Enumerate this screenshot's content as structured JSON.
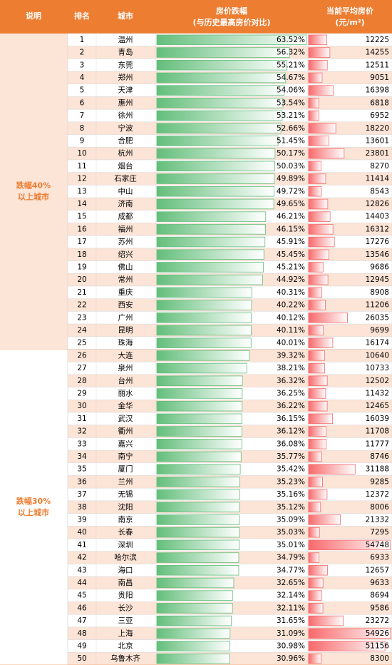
{
  "table": {
    "header": {
      "col0": "说明",
      "col1": "排名",
      "col2": "城市",
      "col3": [
        "房价跌幅",
        "(与历史最高房价对比)"
      ],
      "col4": [
        "当前平均房价",
        "(元/m²)"
      ]
    },
    "groups": [
      {
        "label": [
          "跌幅40%",
          "以上城市"
        ],
        "rows": [
          [
            1,
            "温州",
            {
              "value": 63.52,
              "label": "63.52%"
            },
            12225
          ],
          [
            2,
            "青岛",
            {
              "value": 56.32,
              "label": "56.32%"
            },
            14255
          ],
          [
            3,
            "东莞",
            {
              "value": 55.21,
              "label": "55.21%"
            },
            12511
          ],
          [
            4,
            "郑州",
            {
              "value": 54.67,
              "label": "54.67%"
            },
            9051
          ],
          [
            5,
            "天津",
            {
              "value": 54.06,
              "label": "54.06%"
            },
            16398
          ],
          [
            6,
            "惠州",
            {
              "value": 53.54,
              "label": "53.54%"
            },
            6818
          ],
          [
            7,
            "徐州",
            {
              "value": 53.21,
              "label": "53.21%"
            },
            6952
          ],
          [
            8,
            "宁波",
            {
              "value": 52.66,
              "label": "52.66%"
            },
            18220
          ],
          [
            9,
            "合肥",
            {
              "value": 51.45,
              "label": "51.45%"
            },
            13601
          ],
          [
            10,
            "杭州",
            {
              "value": 50.17,
              "label": "50.17%"
            },
            23801
          ],
          [
            11,
            "烟台",
            {
              "value": 50.03,
              "label": "50.03%"
            },
            8270
          ],
          [
            12,
            "石家庄",
            {
              "value": 49.89,
              "label": "49.89%"
            },
            11414
          ],
          [
            13,
            "中山",
            {
              "value": 49.72,
              "label": "49.72%"
            },
            8543
          ],
          [
            14,
            "济南",
            {
              "value": 49.65,
              "label": "49.65%"
            },
            12826
          ],
          [
            15,
            "成都",
            {
              "value": 46.21,
              "label": "46.21%"
            },
            14403
          ],
          [
            16,
            "福州",
            {
              "value": 46.15,
              "label": "46.15%"
            },
            16312
          ],
          [
            17,
            "苏州",
            {
              "value": 45.91,
              "label": "45.91%"
            },
            17276
          ],
          [
            18,
            "绍兴",
            {
              "value": 45.45,
              "label": "45.45%"
            },
            13546
          ],
          [
            19,
            "佛山",
            {
              "value": 45.21,
              "label": "45.21%"
            },
            9686
          ],
          [
            20,
            "常州",
            {
              "value": 44.92,
              "label": "44.92%"
            },
            12945
          ],
          [
            21,
            "重庆",
            {
              "value": 40.31,
              "label": "40.31%"
            },
            8908
          ],
          [
            22,
            "西安",
            {
              "value": 40.22,
              "label": "40.22%"
            },
            11206
          ],
          [
            23,
            "广州",
            {
              "value": 40.12,
              "label": "40.12%"
            },
            26035
          ],
          [
            24,
            "昆明",
            {
              "value": 40.11,
              "label": "40.11%"
            },
            9699
          ],
          [
            25,
            "珠海",
            {
              "value": 40.01,
              "label": "40.01%"
            },
            16174
          ]
        ]
      },
      {
        "label": [
          "跌幅30%",
          "以上城市"
        ],
        "rows": [
          [
            26,
            "大连",
            {
              "value": 39.32,
              "label": "39.32%"
            },
            10640
          ],
          [
            27,
            "泉州",
            {
              "value": 38.21,
              "label": "38.21%"
            },
            10733
          ],
          [
            28,
            "台州",
            {
              "value": 36.32,
              "label": "36.32%"
            },
            12502
          ],
          [
            29,
            "丽水",
            {
              "value": 36.25,
              "label": "36.25%"
            },
            11432
          ],
          [
            30,
            "金华",
            {
              "value": 36.22,
              "label": "36.22%"
            },
            12465
          ],
          [
            31,
            "武汉",
            {
              "value": 36.15,
              "label": "36.15%"
            },
            16039
          ],
          [
            32,
            "衢州",
            {
              "value": 36.12,
              "label": "36.12%"
            },
            11708
          ],
          [
            33,
            "嘉兴",
            {
              "value": 36.08,
              "label": "36.08%"
            },
            11777
          ],
          [
            34,
            "南宁",
            {
              "value": 35.77,
              "label": "35.77%"
            },
            8746
          ],
          [
            35,
            "厦门",
            {
              "value": 35.42,
              "label": "35.42%"
            },
            31188
          ],
          [
            36,
            "兰州",
            {
              "value": 35.23,
              "label": "35.23%"
            },
            9285
          ],
          [
            37,
            "无锡",
            {
              "value": 35.16,
              "label": "35.16%"
            },
            12372
          ],
          [
            38,
            "沈阳",
            {
              "value": 35.12,
              "label": "35.12%"
            },
            8006
          ],
          [
            39,
            "南京",
            {
              "value": 35.09,
              "label": "35.09%"
            },
            21332
          ],
          [
            40,
            "长春",
            {
              "value": 35.03,
              "label": "35.03%"
            },
            7295
          ],
          [
            41,
            "深圳",
            {
              "value": 35.01,
              "label": "35.01%"
            },
            54748
          ],
          [
            42,
            "哈尔滨",
            {
              "value": 34.79,
              "label": "34.79%"
            },
            6933
          ],
          [
            43,
            "海口",
            {
              "value": 34.77,
              "label": "34.77%"
            },
            12657
          ],
          [
            44,
            "南昌",
            {
              "value": 32.65,
              "label": "32.65%"
            },
            9633
          ],
          [
            45,
            "贵阳",
            {
              "value": 32.14,
              "label": "32.14%"
            },
            8694
          ],
          [
            46,
            "长沙",
            {
              "value": 32.11,
              "label": "32.11%"
            },
            9586
          ],
          [
            47,
            "三亚",
            {
              "value": 31.65,
              "label": "31.65%"
            },
            23272
          ],
          [
            48,
            "上海",
            {
              "value": 31.09,
              "label": "31.09%"
            },
            54926
          ],
          [
            49,
            "北京",
            {
              "value": 30.98,
              "label": "30.98%"
            },
            51156
          ],
          [
            50,
            "乌鲁木齐",
            {
              "value": 30.96,
              "label": "30.96%"
            },
            8300
          ]
        ]
      }
    ]
  }
}
